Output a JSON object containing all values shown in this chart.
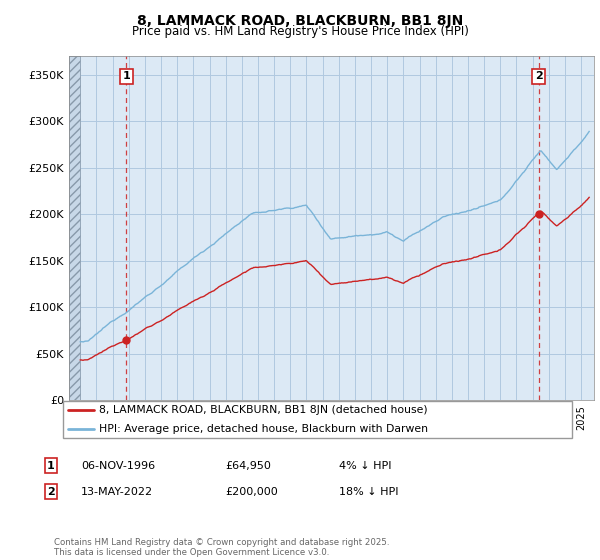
{
  "title": "8, LAMMACK ROAD, BLACKBURN, BB1 8JN",
  "subtitle": "Price paid vs. HM Land Registry's House Price Index (HPI)",
  "ylim": [
    0,
    370000
  ],
  "yticks": [
    0,
    50000,
    100000,
    150000,
    200000,
    250000,
    300000,
    350000
  ],
  "ytick_labels": [
    "£0",
    "£50K",
    "£100K",
    "£150K",
    "£200K",
    "£250K",
    "£300K",
    "£350K"
  ],
  "sale1_date": 1996.85,
  "sale1_price": 64950,
  "sale2_date": 2022.37,
  "sale2_price": 200000,
  "hpi_color": "#7ab4d8",
  "sale_color": "#cc2222",
  "plot_bg_color": "#dce9f5",
  "legend1": "8, LAMMACK ROAD, BLACKBURN, BB1 8JN (detached house)",
  "legend2": "HPI: Average price, detached house, Blackburn with Darwen",
  "table_row1": [
    "1",
    "06-NOV-1996",
    "£64,950",
    "4% ↓ HPI"
  ],
  "table_row2": [
    "2",
    "13-MAY-2022",
    "£200,000",
    "18% ↓ HPI"
  ],
  "footnote": "Contains HM Land Registry data © Crown copyright and database right 2025.\nThis data is licensed under the Open Government Licence v3.0.",
  "grid_color": "#b0c8e0"
}
